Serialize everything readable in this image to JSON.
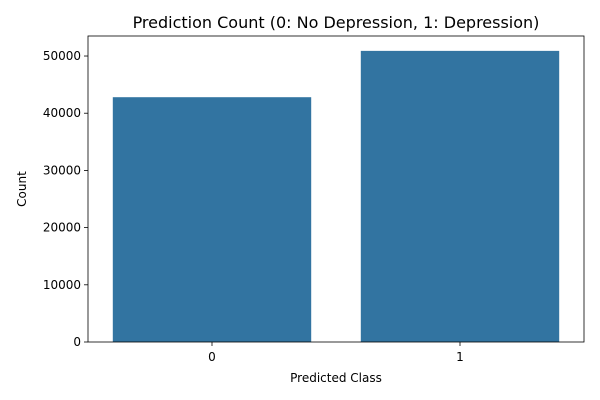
{
  "chart_data": {
    "type": "bar",
    "title": "Prediction Count (0: No Depression, 1: Depression)",
    "xlabel": "Predicted Class",
    "ylabel": "Count",
    "categories": [
      "0",
      "1"
    ],
    "values": [
      42800,
      50900
    ],
    "ylim": [
      0,
      53500
    ],
    "yticks": [
      0,
      10000,
      20000,
      30000,
      40000,
      50000
    ],
    "bar_color": "#3274a1",
    "grid": false,
    "legend": "none"
  }
}
